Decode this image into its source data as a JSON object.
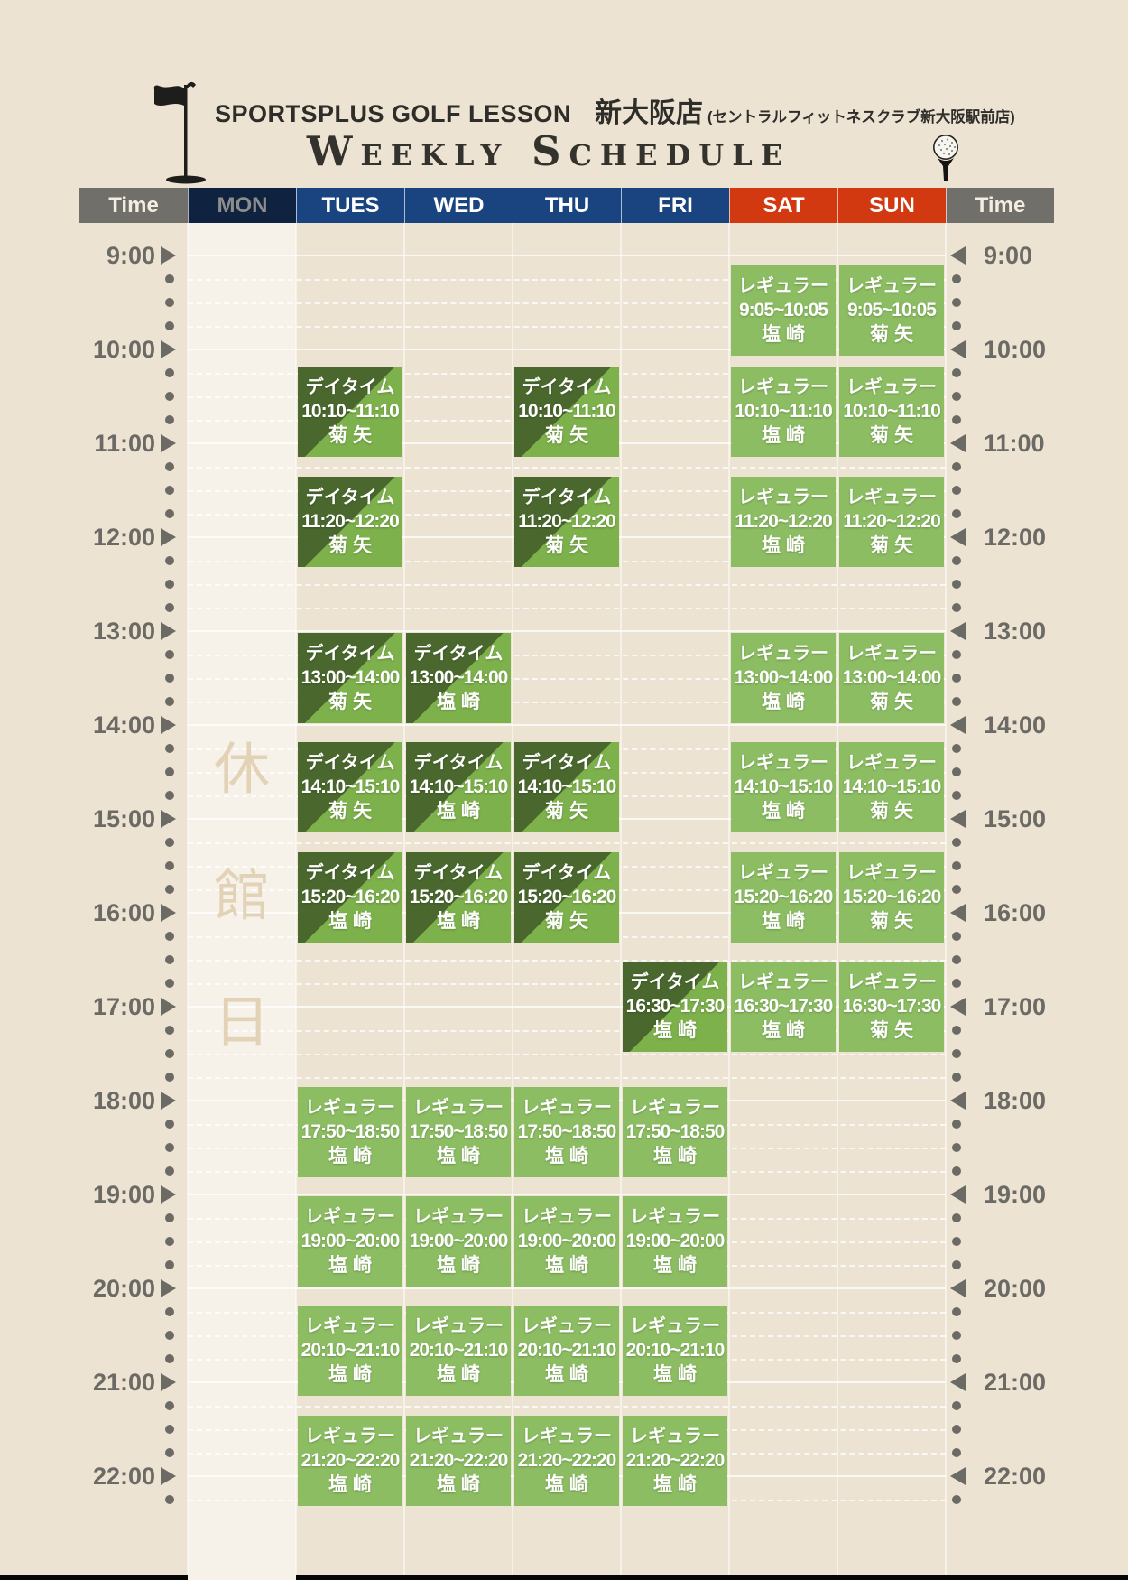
{
  "header": {
    "brand": "SPORTSPLUS GOLF LESSON",
    "store": "新大阪店",
    "store_note": "(セントラルフィットネスクラブ新大阪駅前店)",
    "title": "Weekly Schedule"
  },
  "columns": [
    {
      "label": "Time",
      "kind": "time"
    },
    {
      "label": "MON",
      "kind": "mon"
    },
    {
      "label": "TUES",
      "kind": "weekday"
    },
    {
      "label": "WED",
      "kind": "weekday"
    },
    {
      "label": "THU",
      "kind": "weekday"
    },
    {
      "label": "FRI",
      "kind": "weekday"
    },
    {
      "label": "SAT",
      "kind": "weekend"
    },
    {
      "label": "SUN",
      "kind": "weekend"
    },
    {
      "label": "Time",
      "kind": "time"
    }
  ],
  "timeline": {
    "hours": [
      "9:00",
      "10:00",
      "11:00",
      "12:00",
      "13:00",
      "14:00",
      "15:00",
      "16:00",
      "17:00",
      "18:00",
      "19:00",
      "20:00",
      "21:00",
      "22:00"
    ]
  },
  "closed_day": {
    "day": "MON",
    "label": "休館日"
  },
  "lesson_types": {
    "daytime": {
      "label": "デイタイム"
    },
    "regular": {
      "label": "レギュラー"
    }
  },
  "instructors": [
    "菊矢",
    "塩崎"
  ],
  "lessons": [
    {
      "day": "TUES",
      "type": "daytime",
      "time": "10:10~11:10",
      "instructor": "菊矢"
    },
    {
      "day": "TUES",
      "type": "daytime",
      "time": "11:20~12:20",
      "instructor": "菊矢"
    },
    {
      "day": "TUES",
      "type": "daytime",
      "time": "13:00~14:00",
      "instructor": "菊矢"
    },
    {
      "day": "TUES",
      "type": "daytime",
      "time": "14:10~15:10",
      "instructor": "菊矢"
    },
    {
      "day": "TUES",
      "type": "daytime",
      "time": "15:20~16:20",
      "instructor": "塩崎"
    },
    {
      "day": "TUES",
      "type": "regular",
      "time": "17:50~18:50",
      "instructor": "塩崎"
    },
    {
      "day": "TUES",
      "type": "regular",
      "time": "19:00~20:00",
      "instructor": "塩崎"
    },
    {
      "day": "TUES",
      "type": "regular",
      "time": "20:10~21:10",
      "instructor": "塩崎"
    },
    {
      "day": "TUES",
      "type": "regular",
      "time": "21:20~22:20",
      "instructor": "塩崎"
    },
    {
      "day": "WED",
      "type": "daytime",
      "time": "13:00~14:00",
      "instructor": "塩崎"
    },
    {
      "day": "WED",
      "type": "daytime",
      "time": "14:10~15:10",
      "instructor": "塩崎"
    },
    {
      "day": "WED",
      "type": "daytime",
      "time": "15:20~16:20",
      "instructor": "塩崎"
    },
    {
      "day": "WED",
      "type": "regular",
      "time": "17:50~18:50",
      "instructor": "塩崎"
    },
    {
      "day": "WED",
      "type": "regular",
      "time": "19:00~20:00",
      "instructor": "塩崎"
    },
    {
      "day": "WED",
      "type": "regular",
      "time": "20:10~21:10",
      "instructor": "塩崎"
    },
    {
      "day": "WED",
      "type": "regular",
      "time": "21:20~22:20",
      "instructor": "塩崎"
    },
    {
      "day": "THU",
      "type": "daytime",
      "time": "10:10~11:10",
      "instructor": "菊矢"
    },
    {
      "day": "THU",
      "type": "daytime",
      "time": "11:20~12:20",
      "instructor": "菊矢"
    },
    {
      "day": "THU",
      "type": "daytime",
      "time": "14:10~15:10",
      "instructor": "菊矢"
    },
    {
      "day": "THU",
      "type": "daytime",
      "time": "15:20~16:20",
      "instructor": "菊矢"
    },
    {
      "day": "THU",
      "type": "regular",
      "time": "17:50~18:50",
      "instructor": "塩崎"
    },
    {
      "day": "THU",
      "type": "regular",
      "time": "19:00~20:00",
      "instructor": "塩崎"
    },
    {
      "day": "THU",
      "type": "regular",
      "time": "20:10~21:10",
      "instructor": "塩崎"
    },
    {
      "day": "THU",
      "type": "regular",
      "time": "21:20~22:20",
      "instructor": "塩崎"
    },
    {
      "day": "FRI",
      "type": "daytime",
      "time": "16:30~17:30",
      "instructor": "塩崎"
    },
    {
      "day": "FRI",
      "type": "regular",
      "time": "17:50~18:50",
      "instructor": "塩崎"
    },
    {
      "day": "FRI",
      "type": "regular",
      "time": "19:00~20:00",
      "instructor": "塩崎"
    },
    {
      "day": "FRI",
      "type": "regular",
      "time": "20:10~21:10",
      "instructor": "塩崎"
    },
    {
      "day": "FRI",
      "type": "regular",
      "time": "21:20~22:20",
      "instructor": "塩崎"
    },
    {
      "day": "SAT",
      "type": "regular",
      "time": "9:05~10:05",
      "instructor": "塩崎"
    },
    {
      "day": "SAT",
      "type": "regular",
      "time": "10:10~11:10",
      "instructor": "塩崎"
    },
    {
      "day": "SAT",
      "type": "regular",
      "time": "11:20~12:20",
      "instructor": "塩崎"
    },
    {
      "day": "SAT",
      "type": "regular",
      "time": "13:00~14:00",
      "instructor": "塩崎"
    },
    {
      "day": "SAT",
      "type": "regular",
      "time": "14:10~15:10",
      "instructor": "塩崎"
    },
    {
      "day": "SAT",
      "type": "regular",
      "time": "15:20~16:20",
      "instructor": "塩崎"
    },
    {
      "day": "SAT",
      "type": "regular",
      "time": "16:30~17:30",
      "instructor": "塩崎"
    },
    {
      "day": "SUN",
      "type": "regular",
      "time": "9:05~10:05",
      "instructor": "菊矢"
    },
    {
      "day": "SUN",
      "type": "regular",
      "time": "10:10~11:10",
      "instructor": "菊矢"
    },
    {
      "day": "SUN",
      "type": "regular",
      "time": "11:20~12:20",
      "instructor": "菊矢"
    },
    {
      "day": "SUN",
      "type": "regular",
      "time": "13:00~14:00",
      "instructor": "菊矢"
    },
    {
      "day": "SUN",
      "type": "regular",
      "time": "14:10~15:10",
      "instructor": "菊矢"
    },
    {
      "day": "SUN",
      "type": "regular",
      "time": "15:20~16:20",
      "instructor": "菊矢"
    },
    {
      "day": "SUN",
      "type": "regular",
      "time": "16:30~17:30",
      "instructor": "菊矢"
    }
  ],
  "colors": {
    "page_bg": "#ece3d3",
    "mon_col_bg": "#f6f1e9",
    "time_header_bg": "#716f6a",
    "mon_header_bg": "#0f2240",
    "weekday_header_bg": "#1a4480",
    "weekend_header_bg": "#d23911",
    "regular_green": "#8cbd62",
    "daytime_dark": "#4a682e",
    "daytime_light": "#7db14b",
    "closed_text": "#e2d3b6",
    "time_label": "#6b6a64"
  }
}
